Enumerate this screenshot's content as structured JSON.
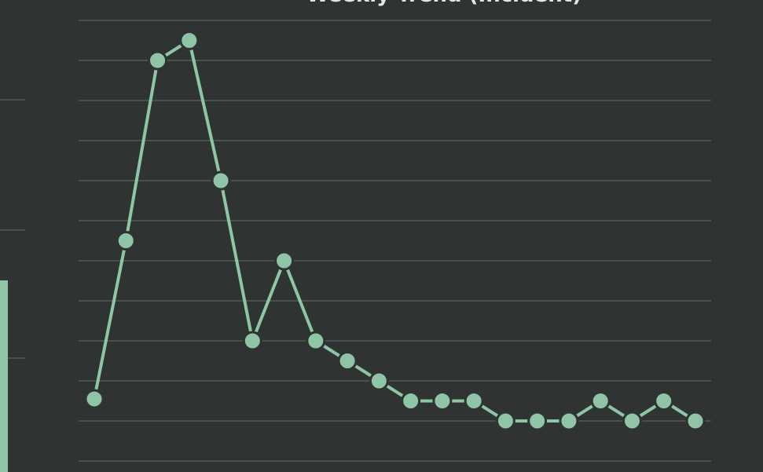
{
  "chart_data": {
    "type": "line",
    "title": "Weekly Trend (Incident)",
    "categories": [
      null,
      null,
      null,
      null,
      null,
      null,
      null,
      null,
      null,
      null,
      null,
      null,
      null,
      null,
      null,
      null,
      null,
      null,
      null,
      null
    ],
    "series": [
      {
        "color": "#8fc4a6",
        "values": [
          1.55,
          5.5,
          10,
          10.5,
          7,
          3,
          5,
          3,
          2.5,
          2,
          1.5,
          1.5,
          1.5,
          1,
          1,
          1,
          1.5,
          1,
          1.5,
          1
        ]
      }
    ],
    "ylim": [
      0,
      11
    ],
    "yticks": [
      0,
      1,
      2,
      3,
      4,
      5,
      6,
      7,
      8,
      9,
      10,
      11
    ],
    "grid": true
  }
}
